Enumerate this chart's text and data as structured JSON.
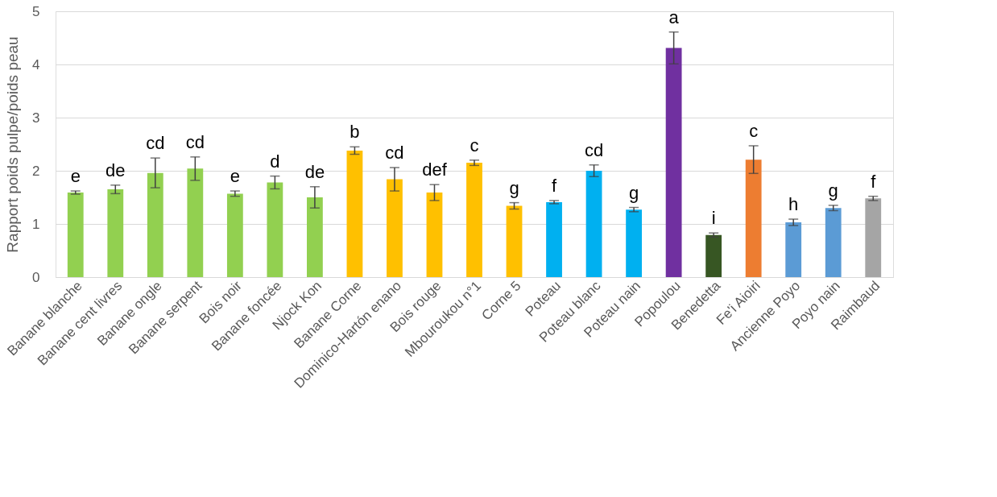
{
  "chart_data": {
    "type": "bar",
    "ylabel": "Rapport poids pulpe/poids peau",
    "categories": [
      "Banane blanche",
      "Banane cent livres",
      "Banane ongle",
      "Banane serpent",
      "Bois noir",
      "Banane foncée",
      "Njock Kon",
      "Banane Corne",
      "Dominico-Hartón enano",
      "Bois rouge",
      "Mbouroukou n°1",
      "Corne 5",
      "Poteau",
      "Poteau blanc",
      "Poteau nain",
      "Popoulou",
      "Benedetta",
      "Fe'i Aioiri",
      "Ancienne Poyo",
      "Poyo nain",
      "Raimbaud"
    ],
    "values": [
      1.59,
      1.65,
      1.96,
      2.04,
      1.57,
      1.78,
      1.5,
      2.38,
      1.84,
      1.59,
      2.15,
      1.34,
      1.41,
      2.0,
      1.27,
      4.31,
      0.79,
      2.21,
      1.03,
      1.3,
      1.48
    ],
    "errors": [
      0.03,
      0.08,
      0.28,
      0.22,
      0.05,
      0.12,
      0.2,
      0.07,
      0.22,
      0.15,
      0.05,
      0.06,
      0.03,
      0.11,
      0.04,
      0.3,
      0.04,
      0.26,
      0.06,
      0.05,
      0.04
    ],
    "colors": [
      "#92d050",
      "#92d050",
      "#92d050",
      "#92d050",
      "#92d050",
      "#92d050",
      "#92d050",
      "#ffc000",
      "#ffc000",
      "#ffc000",
      "#ffc000",
      "#ffc000",
      "#00b0f0",
      "#00b0f0",
      "#00b0f0",
      "#7030a0",
      "#375623",
      "#ed7d31",
      "#5b9bd5",
      "#5b9bd5",
      "#a5a5a5"
    ],
    "ylim": [
      0,
      5
    ],
    "yticks": [
      0,
      1,
      2,
      3,
      4,
      5
    ],
    "grid": "y",
    "annotations": [
      {
        "text": "e",
        "x": "Banane blanche",
        "y": 1.62
      },
      {
        "text": "de",
        "x": "Banane cent livres",
        "y": 1.73
      },
      {
        "text": "cd",
        "x": "Banane ongle",
        "y": 2.24
      },
      {
        "text": "cd",
        "x": "Banane serpent",
        "y": 2.26
      },
      {
        "text": "e",
        "x": "Bois noir",
        "y": 1.62
      },
      {
        "text": "d",
        "x": "Banane foncée",
        "y": 1.9
      },
      {
        "text": "de",
        "x": "Njock Kon",
        "y": 1.7
      },
      {
        "text": "b",
        "x": "Banane Corne",
        "y": 2.45
      },
      {
        "text": "cd",
        "x": "Dominico-Hartón enano",
        "y": 2.06
      },
      {
        "text": "def",
        "x": "Bois rouge",
        "y": 1.74
      },
      {
        "text": "c",
        "x": "Mbouroukou n°1",
        "y": 2.2
      },
      {
        "text": "g",
        "x": "Corne 5",
        "y": 1.4
      },
      {
        "text": "f",
        "x": "Poteau",
        "y": 1.44
      },
      {
        "text": "cd",
        "x": "Poteau blanc",
        "y": 2.11
      },
      {
        "text": "g",
        "x": "Poteau nain",
        "y": 1.31
      },
      {
        "text": "a",
        "x": "Popoulou",
        "y": 4.61
      },
      {
        "text": "i",
        "x": "Benedetta",
        "y": 0.83
      },
      {
        "text": "c",
        "x": "Fe'i Aioiri",
        "y": 2.47
      },
      {
        "text": "h",
        "x": "Ancienne Poyo",
        "y": 1.09
      },
      {
        "text": "g",
        "x": "Poyo nain",
        "y": 1.35
      },
      {
        "text": "f",
        "x": "Raimbaud",
        "y": 1.52
      }
    ]
  }
}
